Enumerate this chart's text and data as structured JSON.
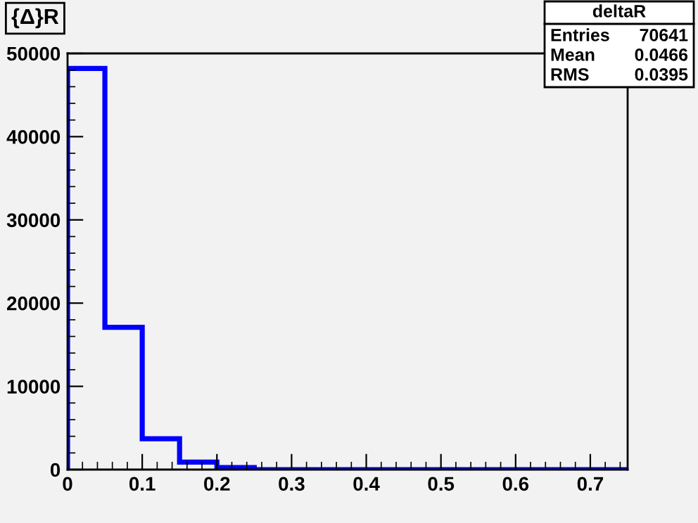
{
  "chart_data": {
    "type": "histogram",
    "title": "{Δ}R",
    "bins": [
      0,
      0.05,
      0.1,
      0.15,
      0.2,
      0.25,
      0.3,
      0.35,
      0.4,
      0.45,
      0.5,
      0.55,
      0.6,
      0.65,
      0.7,
      0.75
    ],
    "values": [
      48200,
      17100,
      3700,
      900,
      250,
      0,
      0,
      0,
      0,
      0,
      0,
      0,
      0,
      0,
      0
    ],
    "color": "#0000ff",
    "xlim": [
      0,
      0.75
    ],
    "xticks": [
      0,
      0.1,
      0.2,
      0.3,
      0.4,
      0.5,
      0.6,
      0.7
    ],
    "ylim": [
      0,
      50000
    ],
    "yticks": [
      0,
      10000,
      20000,
      30000,
      40000,
      50000
    ],
    "annotations": [
      "deltaR",
      "Entries 70641",
      "Mean 0.0466",
      "RMS 0.0395"
    ]
  }
}
